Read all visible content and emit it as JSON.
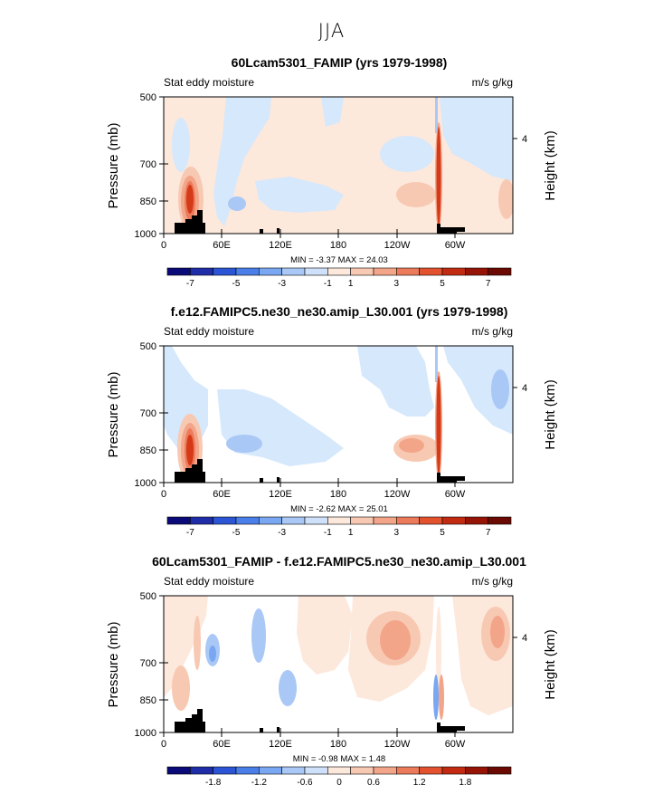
{
  "page_title": "JJA",
  "chart_data": [
    {
      "type": "heatmap",
      "title": "60Lcam5301_FAMIP (yrs 1979-1998)",
      "left_label": "Stat eddy moisture",
      "right_label": "m/s g/kg",
      "ylabel": "Pressure (mb)",
      "y2label": "Height (km)",
      "y_ticks": [
        "500",
        "700",
        "850",
        "1000"
      ],
      "y2_ticks": [
        "4"
      ],
      "x_ticks": [
        "0",
        "60E",
        "120E",
        "180",
        "120W",
        "60W"
      ],
      "stats": "MIN =  -3.37  MAX =  24.03",
      "colorbar_labels": [
        "-7",
        "-5",
        "-3",
        "-1",
        "1",
        "3",
        "5",
        "7"
      ],
      "xlim": [
        0,
        360
      ],
      "ylim_mb": [
        1000,
        500
      ]
    },
    {
      "type": "heatmap",
      "title": "f.e12.FAMIPC5.ne30_ne30.amip_L30.001 (yrs 1979-1998)",
      "left_label": "Stat eddy moisture",
      "right_label": "m/s g/kg",
      "ylabel": "Pressure (mb)",
      "y2label": "Height (km)",
      "y_ticks": [
        "500",
        "700",
        "850",
        "1000"
      ],
      "y2_ticks": [
        "4"
      ],
      "x_ticks": [
        "0",
        "60E",
        "120E",
        "180",
        "120W",
        "60W"
      ],
      "stats": "MIN =  -2.62  MAX =  25.01",
      "colorbar_labels": [
        "-7",
        "-5",
        "-3",
        "-1",
        "1",
        "3",
        "5",
        "7"
      ],
      "xlim": [
        0,
        360
      ],
      "ylim_mb": [
        1000,
        500
      ]
    },
    {
      "type": "heatmap",
      "title": "60Lcam5301_FAMIP - f.e12.FAMIPC5.ne30_ne30.amip_L30.001",
      "left_label": "Stat eddy moisture",
      "right_label": "m/s g/kg",
      "ylabel": "Pressure (mb)",
      "y2label": "Height (km)",
      "y_ticks": [
        "500",
        "700",
        "850",
        "1000"
      ],
      "y2_ticks": [
        "4"
      ],
      "x_ticks": [
        "0",
        "60E",
        "120E",
        "180",
        "120W",
        "60W"
      ],
      "stats": "MIN =  -0.98  MAX =  1.48",
      "colorbar_labels": [
        "-1.8",
        "-1.2",
        "-0.6",
        "0",
        "0.6",
        "1.2",
        "1.8"
      ],
      "xlim": [
        0,
        360
      ],
      "ylim_mb": [
        1000,
        500
      ]
    }
  ],
  "colors": {
    "colorbar": [
      "#0a0a78",
      "#1f2ea8",
      "#2b55d4",
      "#4a7ee8",
      "#7aa7f2",
      "#a9c8f6",
      "#cfe1fa",
      "#fde8dc",
      "#f8c9b2",
      "#f3a589",
      "#ec7b5c",
      "#e2522f",
      "#c22b12",
      "#961406",
      "#6a0a02"
    ],
    "light_blue": "#d6e8fb",
    "blue2": "#a9c8f6",
    "blue3": "#7aa7f2",
    "blue4": "#4a7ee8",
    "peach": "#fde8dc",
    "salmon1": "#f8c9b2",
    "salmon2": "#f3a589",
    "red1": "#ec7b5c",
    "red2": "#d43a18",
    "red3": "#9a1406",
    "topo": "#000000"
  }
}
